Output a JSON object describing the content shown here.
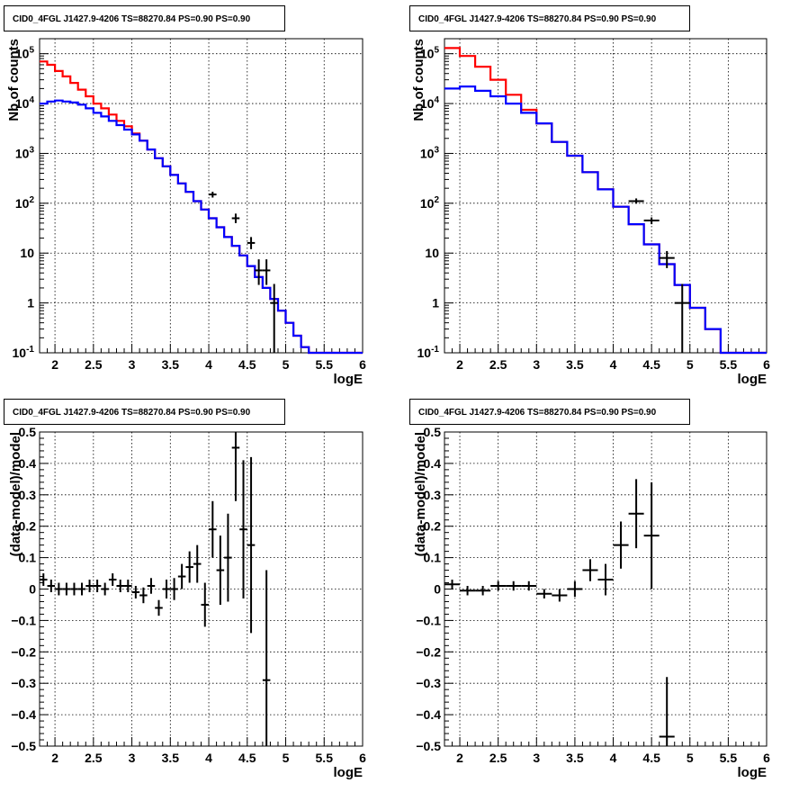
{
  "chart_data": [
    {
      "type": "step-histogram",
      "title": "CID0_4FGL J1427.9-4206 TS=88270.84 PS=0.90 PS=0.90",
      "xlabel": "logE",
      "ylabel": "Nb of counts",
      "xlim": [
        1.8,
        6
      ],
      "ylim": [
        0.1,
        200000
      ],
      "yscale": "log",
      "grid": true,
      "x_ticks": [
        "2",
        "2.5",
        "3",
        "3.5",
        "4",
        "4.5",
        "5",
        "5.5",
        "6"
      ],
      "y_ticks": [
        "10^-1",
        "1",
        "10",
        "10^2",
        "10^3",
        "10^4",
        "10^5"
      ],
      "series": [
        {
          "color": "#ff0000",
          "kind": "step",
          "edges": [
            1.8,
            1.9,
            2.0,
            2.1,
            2.2,
            2.3,
            2.4,
            2.5,
            2.6,
            2.7,
            2.8,
            2.9,
            3.0,
            3.1,
            3.2,
            3.3,
            3.4,
            3.5,
            3.6,
            3.7,
            3.8,
            3.9,
            4.0,
            4.1,
            4.2,
            4.3,
            4.4,
            4.5,
            4.6,
            4.7,
            4.8,
            4.9,
            5.0,
            5.1,
            5.2,
            5.3,
            5.4,
            5.5,
            5.6,
            5.7,
            5.8,
            5.9,
            6.0
          ],
          "values": [
            70000,
            60000,
            45000,
            35000,
            26000,
            19000,
            14000,
            10000,
            8000,
            6000,
            4500,
            3500,
            2500,
            1800,
            1200,
            800,
            550,
            370,
            250,
            170,
            110,
            75,
            50,
            33,
            21,
            14,
            9,
            5.5,
            3.3,
            2.0,
            1.2,
            0.7,
            0.4,
            0.22,
            0.13,
            0.1,
            0.1,
            0.1,
            0.1,
            0.1,
            0.1,
            0.1
          ]
        },
        {
          "color": "#0000ff",
          "kind": "step",
          "edges": [
            1.8,
            1.9,
            2.0,
            2.1,
            2.2,
            2.3,
            2.4,
            2.5,
            2.6,
            2.7,
            2.8,
            2.9,
            3.0,
            3.1,
            3.2,
            3.3,
            3.4,
            3.5,
            3.6,
            3.7,
            3.8,
            3.9,
            4.0,
            4.1,
            4.2,
            4.3,
            4.4,
            4.5,
            4.6,
            4.7,
            4.8,
            4.9,
            5.0,
            5.1,
            5.2,
            5.3,
            5.4,
            5.5,
            5.6,
            5.7,
            5.8,
            5.9,
            6.0
          ],
          "values": [
            10000,
            11000,
            11500,
            11000,
            10500,
            9500,
            8000,
            6500,
            5500,
            4500,
            3700,
            3000,
            2400,
            1800,
            1200,
            800,
            550,
            370,
            250,
            170,
            110,
            75,
            50,
            33,
            21,
            14,
            9,
            5.5,
            3.3,
            2.0,
            1.2,
            0.7,
            0.4,
            0.22,
            0.13,
            0.1,
            0.1,
            0.1,
            0.1,
            0.1,
            0.1,
            0.1
          ]
        }
      ],
      "points": [
        {
          "x": 4.05,
          "y": 150,
          "xerr": 0.05,
          "ylo": 130,
          "yhi": 170
        },
        {
          "x": 4.35,
          "y": 50,
          "xerr": 0.05,
          "ylo": 40,
          "yhi": 62
        },
        {
          "x": 4.55,
          "y": 16,
          "xerr": 0.05,
          "ylo": 12,
          "yhi": 21
        },
        {
          "x": 4.65,
          "y": 4.5,
          "xerr": 0.05,
          "ylo": 2.3,
          "yhi": 7.5
        },
        {
          "x": 4.75,
          "y": 4.5,
          "xerr": 0.05,
          "ylo": 2.3,
          "yhi": 7.5
        },
        {
          "x": 4.85,
          "y": 1,
          "xerr": 0.05,
          "ylo": 0.1,
          "yhi": 2.4
        }
      ]
    },
    {
      "type": "step-histogram",
      "title": "CID0_4FGL J1427.9-4206 TS=88270.84 PS=0.90 PS=0.90",
      "xlabel": "logE",
      "ylabel": "Nb of counts",
      "xlim": [
        1.8,
        6
      ],
      "ylim": [
        0.1,
        200000
      ],
      "yscale": "log",
      "grid": true,
      "x_ticks": [
        "2",
        "2.5",
        "3",
        "3.5",
        "4",
        "4.5",
        "5",
        "5.5",
        "6"
      ],
      "y_ticks": [
        "10^-1",
        "1",
        "10",
        "10^2",
        "10^3",
        "10^4",
        "10^5"
      ],
      "series": [
        {
          "color": "#ff0000",
          "kind": "step",
          "edges": [
            1.8,
            2.0,
            2.2,
            2.4,
            2.6,
            2.8,
            3.0,
            3.2,
            3.4,
            3.6,
            3.8,
            4.0,
            4.2,
            4.4,
            4.6,
            4.8,
            5.0,
            5.2,
            5.4,
            5.6,
            5.8,
            6.0
          ],
          "values": [
            130000,
            90000,
            55000,
            30000,
            15000,
            7500,
            4000,
            1700,
            900,
            420,
            190,
            85,
            38,
            15,
            6,
            2.3,
            0.8,
            0.3,
            0.1,
            0.1,
            0.1
          ]
        },
        {
          "color": "#0000ff",
          "kind": "step",
          "edges": [
            1.8,
            2.0,
            2.2,
            2.4,
            2.6,
            2.8,
            3.0,
            3.2,
            3.4,
            3.6,
            3.8,
            4.0,
            4.2,
            4.4,
            4.6,
            4.8,
            5.0,
            5.2,
            5.4,
            5.6,
            5.8,
            6.0
          ],
          "values": [
            20000,
            22000,
            18000,
            14000,
            10000,
            6500,
            4000,
            1700,
            900,
            420,
            190,
            85,
            38,
            15,
            6,
            2.3,
            0.8,
            0.3,
            0.1,
            0.1,
            0.1
          ]
        }
      ],
      "points": [
        {
          "x": 4.3,
          "y": 110,
          "xerr": 0.1,
          "ylo": 98,
          "yhi": 125
        },
        {
          "x": 4.5,
          "y": 45,
          "xerr": 0.1,
          "ylo": 38,
          "yhi": 52
        },
        {
          "x": 4.7,
          "y": 8,
          "xerr": 0.1,
          "ylo": 5,
          "yhi": 11
        },
        {
          "x": 4.9,
          "y": 1,
          "xerr": 0.1,
          "ylo": 0.1,
          "yhi": 2.4
        }
      ]
    },
    {
      "type": "scatter",
      "title": "CID0_4FGL J1427.9-4206 TS=88270.84 PS=0.90 PS=0.90",
      "xlabel": "logE",
      "ylabel": "(data-model)/model",
      "xlim": [
        1.8,
        6
      ],
      "ylim": [
        -0.5,
        0.5
      ],
      "grid": true,
      "x_ticks": [
        "2",
        "2.5",
        "3",
        "3.5",
        "4",
        "4.5",
        "5",
        "5.5",
        "6"
      ],
      "y_ticks": [
        "−0.5",
        "−0.4",
        "−0.3",
        "−0.2",
        "−0.1",
        "0",
        "0.1",
        "0.2",
        "0.3",
        "0.4",
        "0.5"
      ],
      "points": [
        {
          "x": 1.85,
          "y": 0.03,
          "xerr": 0.05,
          "err": 0.02
        },
        {
          "x": 1.95,
          "y": 0.01,
          "xerr": 0.05,
          "err": 0.02
        },
        {
          "x": 2.05,
          "y": 0.0,
          "xerr": 0.05,
          "err": 0.02
        },
        {
          "x": 2.15,
          "y": 0.0,
          "xerr": 0.05,
          "err": 0.02
        },
        {
          "x": 2.25,
          "y": 0.0,
          "xerr": 0.05,
          "err": 0.02
        },
        {
          "x": 2.35,
          "y": 0.0,
          "xerr": 0.05,
          "err": 0.02
        },
        {
          "x": 2.45,
          "y": 0.01,
          "xerr": 0.05,
          "err": 0.02
        },
        {
          "x": 2.55,
          "y": 0.01,
          "xerr": 0.05,
          "err": 0.02
        },
        {
          "x": 2.65,
          "y": 0.0,
          "xerr": 0.05,
          "err": 0.02
        },
        {
          "x": 2.75,
          "y": 0.03,
          "xerr": 0.05,
          "err": 0.02
        },
        {
          "x": 2.85,
          "y": 0.01,
          "xerr": 0.05,
          "err": 0.02
        },
        {
          "x": 2.95,
          "y": 0.01,
          "xerr": 0.05,
          "err": 0.02
        },
        {
          "x": 3.05,
          "y": -0.01,
          "xerr": 0.05,
          "err": 0.02
        },
        {
          "x": 3.15,
          "y": -0.02,
          "xerr": 0.05,
          "err": 0.025
        },
        {
          "x": 3.25,
          "y": 0.01,
          "xerr": 0.05,
          "err": 0.025
        },
        {
          "x": 3.35,
          "y": -0.06,
          "xerr": 0.05,
          "err": 0.025
        },
        {
          "x": 3.45,
          "y": 0.0,
          "xerr": 0.05,
          "err": 0.03
        },
        {
          "x": 3.55,
          "y": 0.0,
          "xerr": 0.05,
          "err": 0.035
        },
        {
          "x": 3.65,
          "y": 0.04,
          "xerr": 0.05,
          "err": 0.04
        },
        {
          "x": 3.75,
          "y": 0.07,
          "xerr": 0.05,
          "err": 0.05
        },
        {
          "x": 3.85,
          "y": 0.08,
          "xerr": 0.05,
          "err": 0.06
        },
        {
          "x": 3.95,
          "y": -0.05,
          "xerr": 0.05,
          "err": 0.07
        },
        {
          "x": 4.05,
          "y": 0.19,
          "xerr": 0.05,
          "err": 0.09
        },
        {
          "x": 4.15,
          "y": 0.06,
          "xerr": 0.05,
          "err": 0.11
        },
        {
          "x": 4.25,
          "y": 0.1,
          "xerr": 0.05,
          "err": 0.14
        },
        {
          "x": 4.35,
          "y": 0.45,
          "xerr": 0.05,
          "err": 0.17
        },
        {
          "x": 4.45,
          "y": 0.19,
          "xerr": 0.05,
          "err": 0.22
        },
        {
          "x": 4.55,
          "y": 0.14,
          "xerr": 0.05,
          "err": 0.28
        },
        {
          "x": 4.75,
          "y": -0.29,
          "xerr": 0.05,
          "err": 0.35
        }
      ]
    },
    {
      "type": "scatter",
      "title": "CID0_4FGL J1427.9-4206 TS=88270.84 PS=0.90 PS=0.90",
      "xlabel": "logE",
      "ylabel": "(data-model)/model",
      "xlim": [
        1.8,
        6
      ],
      "ylim": [
        -0.5,
        0.5
      ],
      "grid": true,
      "x_ticks": [
        "2",
        "2.5",
        "3",
        "3.5",
        "4",
        "4.5",
        "5",
        "5.5",
        "6"
      ],
      "y_ticks": [
        "−0.5",
        "−0.4",
        "−0.3",
        "−0.2",
        "−0.1",
        "0",
        "0.1",
        "0.2",
        "0.3",
        "0.4",
        "0.5"
      ],
      "points": [
        {
          "x": 1.9,
          "y": 0.015,
          "xerr": 0.1,
          "err": 0.015
        },
        {
          "x": 2.1,
          "y": -0.005,
          "xerr": 0.1,
          "err": 0.015
        },
        {
          "x": 2.3,
          "y": -0.005,
          "xerr": 0.1,
          "err": 0.015
        },
        {
          "x": 2.5,
          "y": 0.01,
          "xerr": 0.1,
          "err": 0.015
        },
        {
          "x": 2.7,
          "y": 0.01,
          "xerr": 0.1,
          "err": 0.015
        },
        {
          "x": 2.9,
          "y": 0.01,
          "xerr": 0.1,
          "err": 0.015
        },
        {
          "x": 3.1,
          "y": -0.015,
          "xerr": 0.1,
          "err": 0.015
        },
        {
          "x": 3.3,
          "y": -0.02,
          "xerr": 0.1,
          "err": 0.02
        },
        {
          "x": 3.5,
          "y": 0.0,
          "xerr": 0.1,
          "err": 0.025
        },
        {
          "x": 3.7,
          "y": 0.06,
          "xerr": 0.1,
          "err": 0.035
        },
        {
          "x": 3.9,
          "y": 0.03,
          "xerr": 0.1,
          "err": 0.05
        },
        {
          "x": 4.1,
          "y": 0.14,
          "xerr": 0.1,
          "err": 0.075
        },
        {
          "x": 4.3,
          "y": 0.24,
          "xerr": 0.1,
          "err": 0.11
        },
        {
          "x": 4.5,
          "y": 0.17,
          "xerr": 0.1,
          "err": 0.17
        },
        {
          "x": 4.7,
          "y": -0.47,
          "xerr": 0.1,
          "err": 0.19
        }
      ]
    }
  ]
}
